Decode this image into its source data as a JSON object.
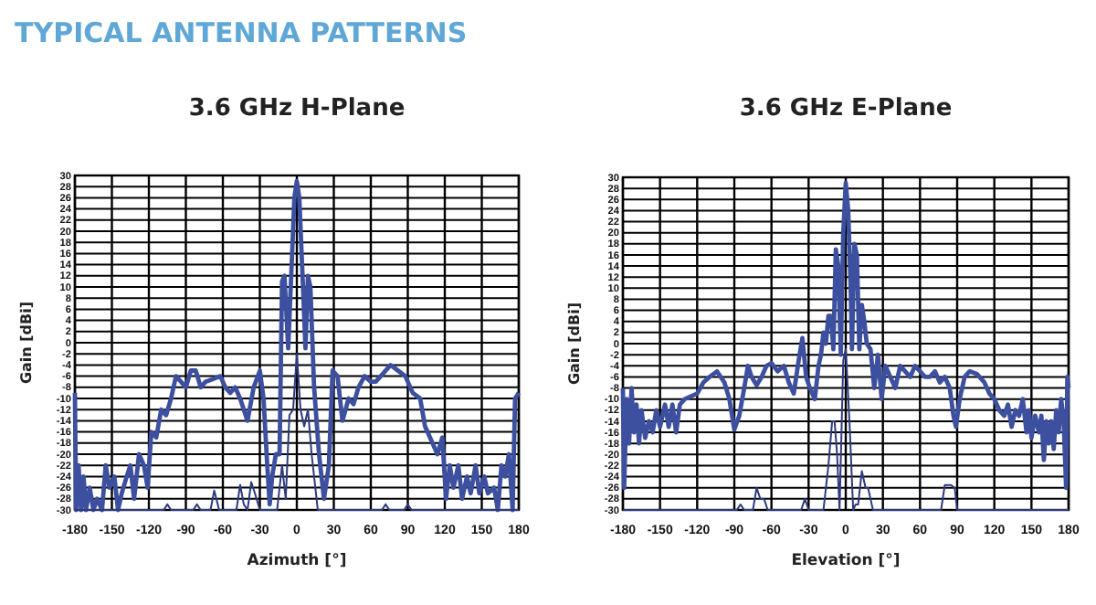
{
  "chart_data": [
    {
      "type": "line",
      "title": "3.6 GHz H-Plane",
      "annotations": [
        "TYPICAL ANTENNA PATTERNS"
      ],
      "xlabel": "Azimuth [°]",
      "ylabel": "Gain [dBi]",
      "xlim": [
        -180,
        180
      ],
      "xticks": [
        -180,
        -150,
        -120,
        -90,
        -60,
        -30,
        0,
        30,
        60,
        90,
        120,
        150,
        180
      ],
      "ylim": [
        -30,
        30
      ],
      "yticks": [
        -30,
        -28,
        -26,
        -24,
        -22,
        -20,
        -18,
        -16,
        -14,
        -12,
        -10,
        -8,
        -6,
        -4,
        -2,
        0,
        2,
        4,
        6,
        8,
        10,
        12,
        14,
        16,
        18,
        20,
        22,
        24,
        26,
        28,
        30
      ],
      "grid": true,
      "marker": "none",
      "line_style": "solid",
      "series": [
        {
          "color": "#3d4f9f",
          "x": [
            -180,
            -179,
            -177,
            -175,
            -173,
            -171,
            -168,
            -165,
            -162,
            -158,
            -155,
            -152,
            -148,
            -145,
            -142,
            -138,
            -135,
            -132,
            -128,
            -124,
            -121,
            -118,
            -114,
            -110,
            -106,
            -102,
            -98,
            -94,
            -90,
            -86,
            -82,
            -78,
            -74,
            -68,
            -62,
            -58,
            -54,
            -50,
            -46,
            -40,
            -35,
            -30,
            -27,
            -24,
            -22,
            -20,
            -17,
            -14,
            -12,
            -10,
            -7,
            -4,
            -2,
            0,
            2,
            5,
            7,
            9,
            11,
            14,
            18,
            22,
            26,
            29,
            33,
            37,
            42,
            46,
            50,
            55,
            60,
            64,
            70,
            76,
            82,
            88,
            94,
            100,
            104,
            110,
            114,
            118,
            121,
            124,
            127,
            131,
            134,
            138,
            141,
            145,
            148,
            152,
            155,
            160,
            163,
            166,
            169,
            172,
            175,
            177,
            180
          ],
          "values": [
            -9,
            -30,
            -22,
            -30,
            -24,
            -30,
            -26,
            -30,
            -28,
            -30,
            -22,
            -26,
            -24,
            -30,
            -27,
            -24,
            -22,
            -28,
            -20,
            -22,
            -26,
            -16,
            -17,
            -12,
            -13,
            -10,
            -6,
            -7,
            -8,
            -5,
            -5,
            -8,
            -7,
            -6.5,
            -6,
            -8,
            -9,
            -8,
            -10,
            -14,
            -8,
            -5,
            -10,
            -22,
            -29,
            -24,
            -20,
            -20,
            11,
            12,
            -1,
            15,
            26,
            29,
            26,
            10,
            -1,
            12,
            10,
            -8,
            -20,
            -28,
            -22,
            -5,
            -6,
            -14,
            -10,
            -11,
            -8,
            -6,
            -7,
            -7,
            -5.5,
            -4,
            -5,
            -6,
            -9,
            -10,
            -15,
            -18,
            -20,
            -17,
            -28,
            -22,
            -26,
            -22,
            -28,
            -24,
            -27,
            -22,
            -27,
            -24,
            -27,
            -26,
            -30,
            -22,
            -24,
            -20,
            -30,
            -10,
            -9
          ]
        },
        {
          "color": "#2e3a7e",
          "x": [
            -180,
            -108,
            -105,
            -102,
            -84,
            -81,
            -78,
            -70,
            -67,
            -63,
            -49,
            -46,
            -43,
            -40,
            -37,
            -34,
            -30,
            -16,
            -12,
            -9,
            -6,
            -3,
            0,
            3,
            6,
            9,
            12,
            17,
            69,
            72,
            75,
            87,
            90,
            93,
            180
          ],
          "values": [
            -30,
            -30,
            -29,
            -30,
            -30,
            -29,
            -30,
            -30,
            -26.5,
            -30,
            -30,
            -25.5,
            -29,
            -30,
            -25,
            -27,
            -30,
            -30,
            -22,
            -28,
            -13,
            -12,
            -2,
            -12,
            -15,
            -12,
            -20,
            -30,
            -30,
            -29,
            -30,
            -30,
            -29,
            -30,
            -30
          ]
        }
      ]
    },
    {
      "type": "line",
      "title": "3.6 GHz E-Plane",
      "xlabel": "Elevation [°]",
      "ylabel": "Gain [dBi]",
      "xlim": [
        -180,
        180
      ],
      "xticks": [
        -180,
        -150,
        -120,
        -90,
        -60,
        -30,
        0,
        30,
        60,
        90,
        120,
        150,
        180
      ],
      "ylim": [
        -30,
        30
      ],
      "yticks": [
        -30,
        -28,
        -26,
        -24,
        -22,
        -20,
        -18,
        -16,
        -14,
        -12,
        -10,
        -8,
        -6,
        -4,
        -2,
        0,
        2,
        4,
        6,
        8,
        10,
        12,
        14,
        16,
        18,
        20,
        22,
        24,
        26,
        28,
        30
      ],
      "grid": true,
      "marker": "none",
      "line_style": "solid",
      "series": [
        {
          "color": "#3d4f9f",
          "x": [
            -180,
            -179,
            -177,
            -175,
            -173,
            -171,
            -169,
            -167,
            -165,
            -162,
            -159,
            -156,
            -153,
            -150,
            -146,
            -143,
            -140,
            -137,
            -134,
            -130,
            -125,
            -120,
            -115,
            -110,
            -104,
            -98,
            -94,
            -90,
            -86,
            -82,
            -79,
            -76,
            -72,
            -68,
            -64,
            -60,
            -55,
            -50,
            -46,
            -42,
            -38,
            -35,
            -32,
            -29,
            -25,
            -22,
            -20,
            -18,
            -16,
            -14,
            -12,
            -10,
            -8,
            -6,
            -4,
            -2,
            0,
            2,
            4,
            5,
            7,
            9,
            11,
            13,
            15,
            17,
            20,
            23,
            26,
            29,
            32,
            36,
            40,
            44,
            48,
            52,
            56,
            60,
            64,
            68,
            72,
            76,
            80,
            84,
            87,
            89,
            92,
            96,
            100,
            106,
            112,
            116,
            120,
            124,
            128,
            131,
            134,
            137,
            140,
            143,
            146,
            148,
            150,
            153,
            156,
            158,
            160,
            162,
            164,
            166,
            168,
            170,
            172,
            174,
            176,
            178,
            179,
            180
          ],
          "values": [
            -8,
            -26,
            -10,
            -18,
            -8,
            -16,
            -11,
            -18,
            -12,
            -17,
            -14,
            -16,
            -12,
            -15,
            -11,
            -15,
            -11,
            -16,
            -11,
            -10,
            -9.5,
            -9,
            -7,
            -6,
            -5,
            -7,
            -10,
            -15.5,
            -13,
            -8,
            -4,
            -6,
            -7.5,
            -6,
            -4,
            -3.5,
            -5,
            -4,
            -7,
            -9,
            -3,
            1,
            -6,
            -8,
            -10,
            -4,
            -2,
            2,
            0,
            5,
            5,
            -1,
            17,
            14,
            -2,
            20,
            29,
            24,
            10,
            -1,
            18,
            16,
            -1,
            7,
            4,
            0,
            -1,
            -8,
            -2,
            -10,
            -4,
            -6,
            -8,
            -4,
            -5,
            -6,
            -4,
            -5,
            -6,
            -6,
            -5,
            -7,
            -6,
            -8,
            -13,
            -15,
            -10,
            -6,
            -5,
            -5.5,
            -7,
            -9,
            -10,
            -12,
            -13,
            -11,
            -15,
            -12,
            -13,
            -10,
            -16,
            -12,
            -17,
            -13,
            -16,
            -13,
            -21,
            -14,
            -18,
            -14,
            -19,
            -12,
            -16,
            -10,
            -14,
            -26,
            -6,
            -8
          ]
        },
        {
          "color": "#2e3a7e",
          "x": [
            -180,
            -88,
            -85,
            -82,
            -75,
            -72,
            -69,
            -66,
            -63,
            -36,
            -33,
            -30,
            -18,
            -14,
            -11,
            -9,
            -7,
            -5,
            -2,
            0,
            3,
            6,
            8,
            10,
            13,
            16,
            18,
            20,
            22,
            77,
            80,
            85,
            88,
            90,
            180
          ],
          "values": [
            -30,
            -30,
            -29,
            -30,
            -30,
            -26,
            -28,
            -28,
            -30,
            -30,
            -28,
            -30,
            -30,
            -22,
            -14,
            -14,
            -20,
            -30,
            -3,
            -1,
            -14,
            -30,
            -29,
            -29,
            -23,
            -26,
            -26,
            -28,
            -30,
            -30,
            -25.5,
            -25.5,
            -26,
            -30,
            -30
          ]
        }
      ]
    }
  ]
}
